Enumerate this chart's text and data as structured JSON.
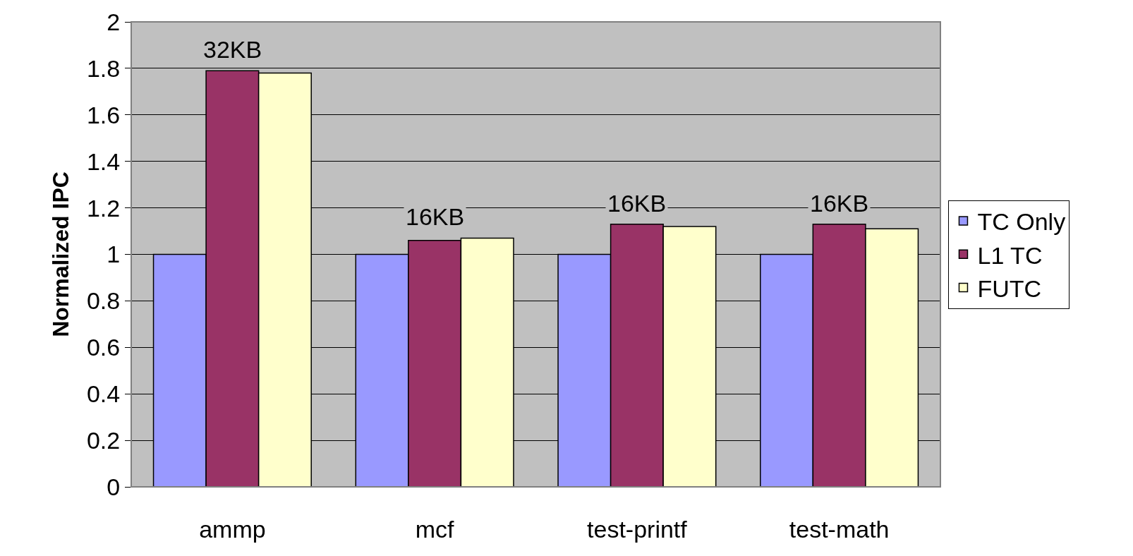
{
  "chart_data": {
    "type": "bar",
    "ylabel": "Normalized IPC",
    "categories": [
      "ammp",
      "mcf",
      "test-printf",
      "test-math"
    ],
    "series": [
      {
        "name": "TC Only",
        "color": "#9999ff",
        "values": [
          1,
          1,
          1,
          1
        ]
      },
      {
        "name": "L1 TC",
        "color": "#993366",
        "values": [
          1.79,
          1.06,
          1.13,
          1.13
        ]
      },
      {
        "name": "FUTC",
        "color": "#ffffcc",
        "values": [
          1.78,
          1.07,
          1.12,
          1.11
        ]
      }
    ],
    "ylim": [
      0,
      2
    ],
    "yticks": [
      0,
      0.2,
      0.4,
      0.6,
      0.8,
      1,
      1.2,
      1.4,
      1.6,
      1.8,
      {
        "value": 2,
        "label": "2"
      }
    ],
    "annotations": [
      "32KB",
      "16KB",
      "16KB",
      "16KB"
    ],
    "grid": "y",
    "legend": "right"
  }
}
